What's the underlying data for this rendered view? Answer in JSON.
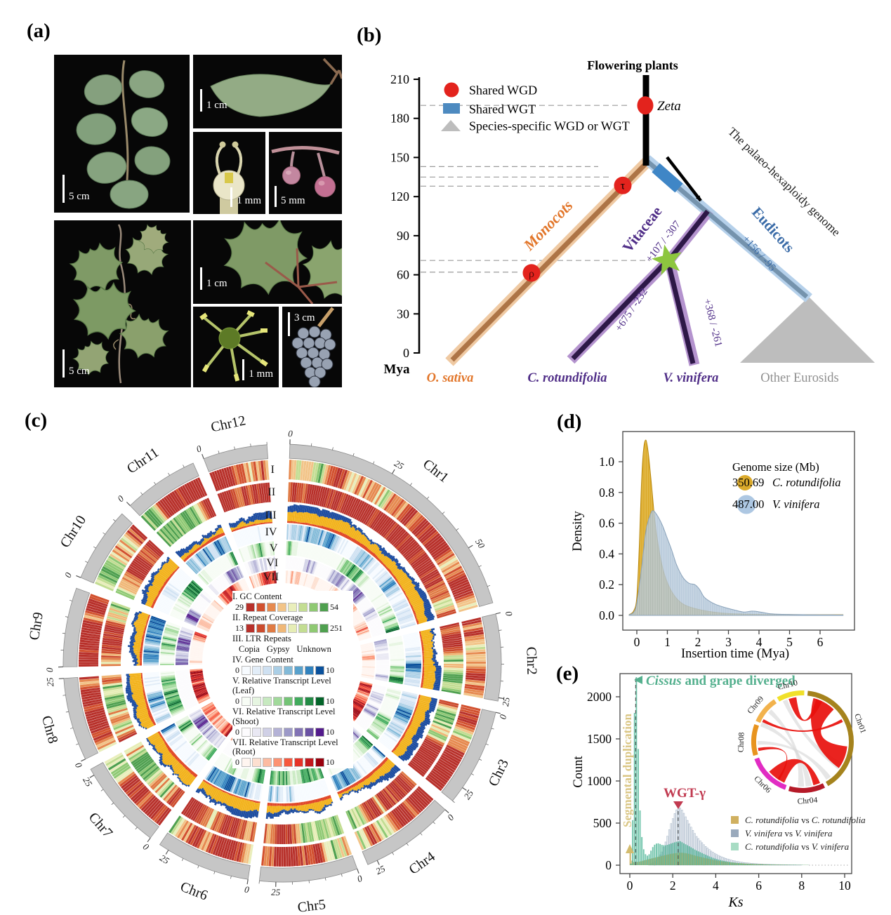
{
  "panels": {
    "a": {
      "label": "(a)",
      "photos": [
        {
          "name": "cissus-rotundifolia-branch",
          "scale_bar": "5 cm"
        },
        {
          "name": "cissus-rotundifolia-leaf",
          "scale_bar": "1 cm"
        },
        {
          "name": "cissus-rotundifolia-flower",
          "scale_bar": "1 mm"
        },
        {
          "name": "cissus-rotundifolia-fruits",
          "scale_bar": "5 mm"
        },
        {
          "name": "vitis-vinifera-shoot",
          "scale_bar": "5 cm"
        },
        {
          "name": "vitis-vinifera-leaf",
          "scale_bar": "1 cm"
        },
        {
          "name": "vitis-vinifera-flower",
          "scale_bar": "1 mm"
        },
        {
          "name": "vitis-vinifera-grape-cluster",
          "scale_bar": "3 cm"
        }
      ]
    },
    "b": {
      "label": "(b)",
      "axis": {
        "unit": "Mya",
        "ticks": [
          210,
          180,
          150,
          120,
          90,
          60,
          30,
          0
        ]
      },
      "legend": [
        {
          "symbol": "circle",
          "color": "#e3231d",
          "label": "Shared WGD"
        },
        {
          "symbol": "square",
          "color": "#4d8ac0",
          "label": "Shared WGT"
        },
        {
          "symbol": "triangle",
          "color": "#bdbdbd",
          "label": "Species-specific WGD or WGT"
        }
      ],
      "root_label": "Flowering plants",
      "annotation": "The palaeo-hexaploidy genome",
      "events": [
        {
          "name": "Zeta",
          "mya": 190
        },
        {
          "name": "τ",
          "mya": 128
        },
        {
          "name": "ρ",
          "mya": 62
        }
      ],
      "star_event_mya": 71,
      "dashed_gridlines_mya": [
        190,
        143,
        135,
        128,
        71,
        62
      ],
      "clades": [
        {
          "label": "Monocots",
          "gains_losses": "",
          "color": "#e2762a"
        },
        {
          "label": "Vitaceae",
          "gains_losses": "+107 / -307",
          "color": "#4f2d87"
        },
        {
          "label": "Eudicots",
          "gains_losses": "+156 / -95",
          "color": "#3b6ca8"
        }
      ],
      "branch_gains_losses": [
        {
          "tip": "C. rotundifolia",
          "value": "+675 / -232"
        },
        {
          "tip": "V. vinifera",
          "value": "+368 / -261"
        }
      ],
      "tips": [
        {
          "label": "O. sativa",
          "color": "#e2762a"
        },
        {
          "label": "C. rotundifolia",
          "color": "#4f2d87"
        },
        {
          "label": "V. vinifera",
          "color": "#4f2d87"
        },
        {
          "label": "Other Eurosids",
          "color": "#8f8f8f"
        }
      ]
    },
    "c": {
      "label": "(c)",
      "chromosomes": [
        "Chr1",
        "Chr2",
        "Chr3",
        "Chr4",
        "Chr5",
        "Chr6",
        "Chr7",
        "Chr8",
        "Chr9",
        "Chr10",
        "Chr11",
        "Chr12"
      ],
      "track_labels": [
        "I",
        "II",
        "III",
        "IV",
        "V",
        "VI",
        "VII"
      ],
      "legend": [
        {
          "title": "I. GC Content",
          "min": "29",
          "max": "54",
          "swatches": [
            "#b8312b",
            "#d2512f",
            "#e68a50",
            "#f2c488",
            "#e9eebb",
            "#c3dd92",
            "#8fc973",
            "#4fa04f"
          ]
        },
        {
          "title": "II. Repeat Coverage",
          "min": "13",
          "max": "251",
          "swatches": [
            "#b8312b",
            "#cc4c2e",
            "#e07b44",
            "#f0b878",
            "#e6edb5",
            "#c3dd92",
            "#8fc973",
            "#4fa04f"
          ]
        },
        {
          "title": "III. LTR Repeats",
          "items": [
            {
              "label": "Copia",
              "color": "#e04626"
            },
            {
              "label": "Gypsy",
              "color": "#f2b31e"
            },
            {
              "label": "Unknown",
              "color": "#1e4da0"
            }
          ]
        },
        {
          "title": "IV. Gene Content",
          "min": "0",
          "max": "10",
          "swatches": [
            "#f7fbff",
            "#e2edf8",
            "#cfe1f2",
            "#abcfe6",
            "#82bad8",
            "#58a1cc",
            "#3182be",
            "#0a519c"
          ]
        },
        {
          "title": "V. Relative Transcript Level (Leaf)",
          "min": "0",
          "max": "10",
          "swatches": [
            "#f7fcf5",
            "#e6f5e1",
            "#c7e9c0",
            "#a1d99b",
            "#74c476",
            "#41ab5d",
            "#238b45",
            "#036429"
          ]
        },
        {
          "title": "VI. Relative Transcript Level (Shoot)",
          "min": "0",
          "max": "10",
          "swatches": [
            "#fcfbfd",
            "#e9e8f3",
            "#d0d0e6",
            "#b4b2d6",
            "#9c99c8",
            "#8273b5",
            "#6a51a3",
            "#531b8c"
          ]
        },
        {
          "title": "VII. Relative Transcript Level (Root)",
          "min": "0",
          "max": "10",
          "swatches": [
            "#fff5f0",
            "#fddfd0",
            "#fcbba1",
            "#fc9272",
            "#f6583e",
            "#e63228",
            "#c2181c",
            "#99000d"
          ]
        }
      ]
    },
    "d": {
      "label": "(d)"
    },
    "e": {
      "label": "(e)"
    }
  },
  "chart_data": [
    {
      "panel": "d",
      "type": "area",
      "xlabel": "Insertion time (Mya)",
      "ylabel": "Density",
      "xticks": [
        0,
        1,
        2,
        3,
        4,
        5,
        6
      ],
      "yticks": [
        "0.0",
        "0.2",
        "0.4",
        "0.6",
        "0.8",
        "1.0"
      ],
      "xlim": [
        -0.45,
        7.1
      ],
      "ylim": [
        0,
        1.28
      ],
      "grid": false,
      "legend_position": "upper right",
      "legend": {
        "title": "Genome size (Mb)",
        "entries": [
          {
            "value": "350.69",
            "species": "C. rotundifolia",
            "color": "#d9a520"
          },
          {
            "value": "487.00",
            "species": "V. vinifera",
            "color": "#a9c4e0"
          }
        ]
      },
      "series": [
        {
          "name": "C. rotundifolia",
          "color": "#d9a520",
          "points": [
            [
              -0.25,
              0.005
            ],
            [
              -0.1,
              0.03
            ],
            [
              0,
              0.12
            ],
            [
              0.08,
              0.45
            ],
            [
              0.15,
              0.85
            ],
            [
              0.22,
              1.08
            ],
            [
              0.3,
              1.14
            ],
            [
              0.38,
              1.05
            ],
            [
              0.48,
              0.85
            ],
            [
              0.6,
              0.6
            ],
            [
              0.75,
              0.4
            ],
            [
              0.9,
              0.27
            ],
            [
              1.1,
              0.17
            ],
            [
              1.35,
              0.1
            ],
            [
              1.6,
              0.065
            ],
            [
              2.0,
              0.04
            ],
            [
              2.5,
              0.022
            ],
            [
              3.0,
              0.012
            ],
            [
              3.6,
              0.008
            ],
            [
              4.2,
              0.006
            ],
            [
              5.0,
              0.005
            ],
            [
              6.0,
              0.004
            ],
            [
              6.75,
              0.004
            ]
          ]
        },
        {
          "name": "V. vinifera",
          "color": "#a7bdd2",
          "points": [
            [
              -0.25,
              0.004
            ],
            [
              -0.1,
              0.02
            ],
            [
              0,
              0.08
            ],
            [
              0.15,
              0.3
            ],
            [
              0.3,
              0.55
            ],
            [
              0.45,
              0.66
            ],
            [
              0.55,
              0.68
            ],
            [
              0.7,
              0.64
            ],
            [
              0.85,
              0.58
            ],
            [
              1.0,
              0.5
            ],
            [
              1.15,
              0.42
            ],
            [
              1.3,
              0.33
            ],
            [
              1.5,
              0.25
            ],
            [
              1.7,
              0.21
            ],
            [
              1.9,
              0.2
            ],
            [
              2.05,
              0.17
            ],
            [
              2.2,
              0.12
            ],
            [
              2.4,
              0.09
            ],
            [
              2.6,
              0.07
            ],
            [
              2.9,
              0.05
            ],
            [
              3.2,
              0.035
            ],
            [
              3.5,
              0.022
            ],
            [
              3.8,
              0.028
            ],
            [
              4.1,
              0.02
            ],
            [
              4.4,
              0.01
            ],
            [
              4.8,
              0.007
            ],
            [
              5.2,
              0.005
            ],
            [
              5.8,
              0.004
            ],
            [
              6.4,
              0.003
            ],
            [
              6.75,
              0.003
            ]
          ]
        }
      ]
    },
    {
      "panel": "e",
      "type": "bar",
      "xlabel": "Ks",
      "ylabel": "Count",
      "xticks": [
        0,
        2,
        4,
        6,
        8,
        10
      ],
      "yticks": [
        0,
        500,
        1000,
        1500,
        2000
      ],
      "xlim": [
        -0.45,
        10.35
      ],
      "ylim": [
        0,
        2280
      ],
      "bar_width": 0.085,
      "dashed_lines_x": [
        0.27,
        2.25
      ],
      "annotations": [
        {
          "name": "divergence",
          "italic": "Cissus",
          "rest": " and grape diverged",
          "color": "#54b08e",
          "x": 0.27
        },
        {
          "name": "segmental-duplication",
          "text": "Segmental duplication",
          "color": "#d3bc6e",
          "x": 0.0
        },
        {
          "name": "wgt-gamma",
          "text": "WGT-γ",
          "color": "#c13a50",
          "x": 2.25
        }
      ],
      "legend": [
        {
          "sp1": "C. rotundifolia",
          "sp2": "C. rotundifolia",
          "color": "#d0b060"
        },
        {
          "sp1": "V. vinifera",
          "sp2": "V. vinifera",
          "color": "#9aaabc"
        },
        {
          "sp1": "C. rotundifolia",
          "sp2": "V. vinifera",
          "color": "#a8dcc4"
        }
      ],
      "series": [
        {
          "name": "C. rotundifolia vs C. rotundifolia",
          "color": "#c3a24b",
          "anchors": [
            [
              0.02,
              215
            ],
            [
              0.06,
              120
            ],
            [
              0.1,
              55
            ],
            [
              0.2,
              35
            ],
            [
              0.35,
              38
            ],
            [
              0.5,
              45
            ],
            [
              0.7,
              58
            ],
            [
              0.9,
              72
            ],
            [
              1.1,
              85
            ],
            [
              1.3,
              98
            ],
            [
              1.5,
              110
            ],
            [
              1.7,
              122
            ],
            [
              1.9,
              133
            ],
            [
              2.1,
              142
            ],
            [
              2.3,
              148
            ],
            [
              2.5,
              147
            ],
            [
              2.7,
              138
            ],
            [
              2.9,
              125
            ],
            [
              3.1,
              110
            ],
            [
              3.4,
              92
            ],
            [
              3.7,
              74
            ],
            [
              4.0,
              58
            ],
            [
              4.3,
              45
            ],
            [
              4.6,
              35
            ],
            [
              5.0,
              26
            ],
            [
              5.4,
              19
            ],
            [
              5.8,
              14
            ],
            [
              6.2,
              10
            ],
            [
              6.6,
              8
            ],
            [
              7.0,
              6
            ],
            [
              7.5,
              4
            ],
            [
              8.0,
              3
            ],
            [
              8.3,
              2
            ]
          ]
        },
        {
          "name": "V. vinifera vs V. vinifera",
          "color": "#aebecd",
          "anchors": [
            [
              0.9,
              8
            ],
            [
              1.1,
              30
            ],
            [
              1.3,
              80
            ],
            [
              1.5,
              160
            ],
            [
              1.7,
              300
            ],
            [
              1.9,
              480
            ],
            [
              2.1,
              620
            ],
            [
              2.25,
              695
            ],
            [
              2.4,
              670
            ],
            [
              2.55,
              600
            ],
            [
              2.7,
              525
            ],
            [
              2.9,
              430
            ],
            [
              3.1,
              345
            ],
            [
              3.3,
              285
            ],
            [
              3.5,
              230
            ],
            [
              3.8,
              165
            ],
            [
              4.1,
              120
            ],
            [
              4.4,
              88
            ],
            [
              4.7,
              62
            ],
            [
              5.0,
              45
            ],
            [
              5.3,
              32
            ],
            [
              5.6,
              24
            ],
            [
              6.0,
              16
            ],
            [
              6.4,
              11
            ],
            [
              6.8,
              8
            ],
            [
              7.2,
              6
            ],
            [
              7.6,
              4
            ],
            [
              8.0,
              3
            ]
          ]
        },
        {
          "name": "C. rotundifolia vs V. vinifera",
          "color": "#4fb596",
          "anchors": [
            [
              0.05,
              20
            ],
            [
              0.1,
              150
            ],
            [
              0.15,
              700
            ],
            [
              0.2,
              1500
            ],
            [
              0.25,
              2270
            ],
            [
              0.3,
              2270
            ],
            [
              0.35,
              1900
            ],
            [
              0.4,
              1250
            ],
            [
              0.45,
              800
            ],
            [
              0.5,
              500
            ],
            [
              0.55,
              360
            ],
            [
              0.6,
              230
            ],
            [
              0.7,
              140
            ],
            [
              0.8,
              110
            ],
            [
              0.9,
              130
            ],
            [
              1.0,
              180
            ],
            [
              1.1,
              230
            ],
            [
              1.2,
              255
            ],
            [
              1.35,
              260
            ],
            [
              1.5,
              240
            ],
            [
              1.65,
              235
            ],
            [
              1.8,
              245
            ],
            [
              2.0,
              265
            ],
            [
              2.2,
              280
            ],
            [
              2.35,
              285
            ],
            [
              2.5,
              262
            ],
            [
              2.7,
              235
            ],
            [
              2.9,
              205
            ],
            [
              3.1,
              175
            ],
            [
              3.4,
              140
            ],
            [
              3.7,
              105
            ],
            [
              4.0,
              75
            ],
            [
              4.4,
              50
            ],
            [
              4.8,
              32
            ],
            [
              5.2,
              22
            ],
            [
              5.6,
              15
            ],
            [
              6.0,
              11
            ],
            [
              6.5,
              8
            ],
            [
              7.0,
              6
            ],
            [
              7.5,
              5
            ],
            [
              8.0,
              4
            ],
            [
              8.3,
              3
            ]
          ]
        }
      ],
      "inset": {
        "chromosomes": [
          {
            "name": "Chr01",
            "color": "#a5831d"
          },
          {
            "name": "Chr04",
            "color": "#b51a28"
          },
          {
            "name": "Chr06",
            "color": "#e12cc3"
          },
          {
            "name": "Chr08",
            "color": "#e8941f"
          },
          {
            "name": "Chr09",
            "color": "#f2b24c"
          },
          {
            "name": "Chr10",
            "color": "#f0e02a"
          }
        ]
      }
    }
  ]
}
